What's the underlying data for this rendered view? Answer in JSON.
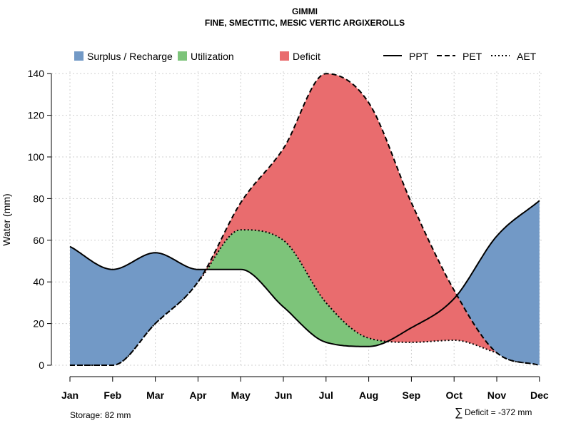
{
  "chart_data": {
    "type": "area",
    "title": "GIMMI",
    "subtitle": "FINE, SMECTITIC, MESIC VERTIC ARGIXEROLLS",
    "xlabel": "",
    "ylabel": "Water (mm)",
    "ylim": [
      0,
      140
    ],
    "yticks": [
      0,
      20,
      40,
      60,
      80,
      100,
      120,
      140
    ],
    "grid": true,
    "categories": [
      "Jan",
      "Feb",
      "Mar",
      "Apr",
      "May",
      "Jun",
      "Jul",
      "Aug",
      "Sep",
      "Oct",
      "Nov",
      "Dec"
    ],
    "series": [
      {
        "name": "PPT",
        "style": "solid",
        "values": [
          57,
          46,
          54,
          46,
          46,
          28,
          11,
          9,
          18,
          32,
          62,
          79
        ]
      },
      {
        "name": "PET",
        "style": "dashed",
        "values": [
          0,
          0,
          20,
          40,
          78,
          104,
          140,
          126,
          78,
          36,
          6,
          0
        ]
      },
      {
        "name": "AET",
        "style": "dotted",
        "values": [
          0,
          0,
          20,
          40,
          65,
          60,
          30,
          13,
          11,
          12,
          6,
          0
        ]
      }
    ],
    "legend": {
      "position": "top",
      "areas": [
        {
          "label": "Surplus / Recharge",
          "color": "#7299c6"
        },
        {
          "label": "Utilization",
          "color": "#7dc47a"
        },
        {
          "label": "Deficit",
          "color": "#e96c6e"
        }
      ],
      "lines": [
        {
          "label": "PPT",
          "style": "solid"
        },
        {
          "label": "PET",
          "style": "dashed"
        },
        {
          "label": "AET",
          "style": "dotted"
        }
      ]
    },
    "annotations": {
      "storage": "Storage: 82 mm",
      "deficit_symbol": "∑",
      "deficit": "Deficit = -372 mm"
    }
  }
}
